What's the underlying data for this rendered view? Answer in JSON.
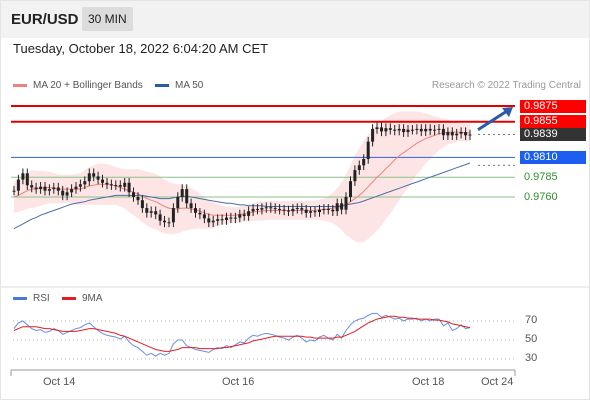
{
  "header": {
    "symbol": "EUR/USD",
    "interval": "30 MIN"
  },
  "datetime": "Tuesday, October 18, 2022 6:04:20 AM CET",
  "legend": {
    "ma20_label": "MA 20 + Bollinger Bands",
    "ma50_label": "MA 50",
    "rsi_label": "RSI",
    "ma9_label": "9MA",
    "copyright": "Research © 2022 Trading Central"
  },
  "colors": {
    "resistance": "#e00000",
    "support": "#3060d0",
    "pivot_green": "#8cc08c",
    "candle": "#222222",
    "bollinger_fill": "#fde0e0",
    "ma20": "#f08080",
    "ma50": "#4a6fa5",
    "rsi": "#6a8ee0",
    "ma9": "#e02020",
    "arrow": "#2a5aa8"
  },
  "chart_data": [
    {
      "type": "candlestick",
      "levels": [
        {
          "value": 0.9875,
          "label": "0.9875",
          "kind": "resistance"
        },
        {
          "value": 0.9855,
          "label": "0.9855",
          "kind": "resistance"
        },
        {
          "value": 0.9839,
          "label": "0.9839",
          "kind": "last"
        },
        {
          "value": 0.981,
          "label": "0.9810",
          "kind": "pivot"
        },
        {
          "value": 0.9785,
          "label": "0.9785",
          "kind": "support"
        },
        {
          "value": 0.976,
          "label": "0.9760",
          "kind": "support"
        }
      ],
      "ylim": [
        0.968,
        0.99
      ],
      "xticks": [
        "Oct 14",
        "Oct 16",
        "Oct 18",
        "Oct 24"
      ],
      "close": [
        0.9768,
        0.9782,
        0.979,
        0.9775,
        0.9772,
        0.977,
        0.9773,
        0.9768,
        0.977,
        0.9772,
        0.9768,
        0.9762,
        0.9766,
        0.977,
        0.9773,
        0.9776,
        0.978,
        0.979,
        0.9786,
        0.9782,
        0.9778,
        0.9776,
        0.9775,
        0.9775,
        0.9773,
        0.9778,
        0.9766,
        0.976,
        0.9756,
        0.9746,
        0.974,
        0.9742,
        0.9738,
        0.973,
        0.9728,
        0.9728,
        0.9746,
        0.976,
        0.977,
        0.9752,
        0.9746,
        0.974,
        0.9738,
        0.9733,
        0.9728,
        0.973,
        0.9732,
        0.9731,
        0.9734,
        0.9733,
        0.9734,
        0.9738,
        0.9736,
        0.9742,
        0.9745,
        0.9744,
        0.9746,
        0.9747,
        0.9746,
        0.9745,
        0.9744,
        0.9743,
        0.9742,
        0.9745,
        0.9746,
        0.9744,
        0.974,
        0.9742,
        0.9741,
        0.9744,
        0.9745,
        0.9744,
        0.9742,
        0.9752,
        0.9744,
        0.976,
        0.978,
        0.9794,
        0.98,
        0.9808,
        0.983,
        0.9846,
        0.9848,
        0.9843,
        0.9847,
        0.9845,
        0.9844,
        0.9846,
        0.9842,
        0.9845,
        0.9845,
        0.9846,
        0.9843,
        0.9846,
        0.9844,
        0.9845,
        0.9846,
        0.9838,
        0.9842,
        0.9838,
        0.984,
        0.9842,
        0.9838,
        0.9839
      ],
      "ma20": [
        0.976,
        0.9762,
        0.9765,
        0.9768,
        0.977,
        0.977,
        0.9771,
        0.9772,
        0.9772,
        0.9771,
        0.977,
        0.977,
        0.977,
        0.977,
        0.977,
        0.977,
        0.9772,
        0.9774,
        0.9775,
        0.9776,
        0.9776,
        0.9776,
        0.9775,
        0.9774,
        0.9772,
        0.977,
        0.9768,
        0.9766,
        0.9764,
        0.9761,
        0.9758,
        0.9756,
        0.9754,
        0.9751,
        0.9748,
        0.9746,
        0.9745,
        0.9745,
        0.9746,
        0.9746,
        0.9745,
        0.9744,
        0.9742,
        0.974,
        0.9738,
        0.9737,
        0.9737,
        0.9737,
        0.9737,
        0.9737,
        0.9737,
        0.9738,
        0.9739,
        0.974,
        0.9741,
        0.9742,
        0.9742,
        0.9743,
        0.9743,
        0.9743,
        0.9743,
        0.9743,
        0.9743,
        0.9743,
        0.9743,
        0.9743,
        0.9743,
        0.9743,
        0.9743,
        0.9744,
        0.9744,
        0.9745,
        0.9746,
        0.9747,
        0.9748,
        0.975,
        0.9754,
        0.9758,
        0.9762,
        0.9767,
        0.9773,
        0.9779,
        0.9785,
        0.979,
        0.9796,
        0.9801,
        0.9807,
        0.9812,
        0.9816,
        0.982,
        0.9824,
        0.9828,
        0.9831,
        0.9834,
        0.9836,
        0.9838,
        0.984,
        0.9841,
        0.9842,
        0.9842,
        0.9842,
        0.9842,
        0.9841,
        0.9841
      ],
      "ma50": [
        0.972,
        0.9723,
        0.9726,
        0.9729,
        0.9732,
        0.9734,
        0.9737,
        0.9739,
        0.9741,
        0.9743,
        0.9745,
        0.9747,
        0.9749,
        0.9751,
        0.9752,
        0.9753,
        0.9754,
        0.9756,
        0.9757,
        0.9758,
        0.9759,
        0.976,
        0.9761,
        0.9762,
        0.9762,
        0.9762,
        0.9762,
        0.9762,
        0.9762,
        0.9762,
        0.9761,
        0.976,
        0.9759,
        0.9758,
        0.9758,
        0.9758,
        0.9759,
        0.976,
        0.9761,
        0.9761,
        0.976,
        0.9759,
        0.9758,
        0.9757,
        0.9756,
        0.9755,
        0.9754,
        0.9753,
        0.9752,
        0.9752,
        0.9751,
        0.975,
        0.975,
        0.9749,
        0.9749,
        0.9749,
        0.9749,
        0.9748,
        0.9748,
        0.9748,
        0.9748,
        0.9748,
        0.9748,
        0.9748,
        0.9748,
        0.9748,
        0.9748,
        0.9748,
        0.9748,
        0.9748,
        0.9748,
        0.9748,
        0.9748,
        0.9748,
        0.9749,
        0.975,
        0.9751,
        0.9752,
        0.9753,
        0.9755,
        0.9757,
        0.9759,
        0.9761,
        0.9763,
        0.9765,
        0.9767,
        0.9769,
        0.9771,
        0.9773,
        0.9775,
        0.9777,
        0.9779,
        0.9781,
        0.9783,
        0.9785,
        0.9787,
        0.9789,
        0.9791,
        0.9793,
        0.9795,
        0.9797,
        0.9799,
        0.9801,
        0.9803
      ],
      "bb_width": [
        0.002,
        0.0021,
        0.0022,
        0.0023,
        0.0024,
        0.0023,
        0.0022,
        0.0021,
        0.002,
        0.0019,
        0.0018,
        0.0018,
        0.0018,
        0.0018,
        0.0019,
        0.002,
        0.0022,
        0.0024,
        0.0025,
        0.0026,
        0.0026,
        0.0026,
        0.0025,
        0.0024,
        0.0024,
        0.0025,
        0.0027,
        0.0029,
        0.0031,
        0.0033,
        0.0034,
        0.0035,
        0.0035,
        0.0035,
        0.0034,
        0.0033,
        0.0032,
        0.0031,
        0.003,
        0.0028,
        0.0026,
        0.0024,
        0.0022,
        0.002,
        0.0018,
        0.0016,
        0.0014,
        0.0012,
        0.0011,
        0.001,
        0.001,
        0.001,
        0.001,
        0.0011,
        0.0011,
        0.0012,
        0.0012,
        0.0012,
        0.0012,
        0.0012,
        0.0012,
        0.0012,
        0.0012,
        0.0012,
        0.0012,
        0.0012,
        0.0012,
        0.0012,
        0.0012,
        0.0013,
        0.0014,
        0.0016,
        0.0019,
        0.0024,
        0.003,
        0.0038,
        0.0046,
        0.0054,
        0.006,
        0.0064,
        0.0066,
        0.0067,
        0.0067,
        0.0066,
        0.0064,
        0.0062,
        0.0059,
        0.0056,
        0.0052,
        0.0048,
        0.0044,
        0.004,
        0.0036,
        0.0032,
        0.0028,
        0.0024,
        0.0021,
        0.0018,
        0.0016,
        0.0014,
        0.0012,
        0.0011,
        0.0011,
        0.0011
      ],
      "forecast_arrow": {
        "from": 0.9845,
        "to": 0.9875
      }
    },
    {
      "type": "line",
      "title": "RSI",
      "ylim": [
        20,
        80
      ],
      "yticks": [
        "70",
        "50",
        "30"
      ],
      "rsi": [
        62,
        68,
        70,
        66,
        62,
        60,
        61,
        58,
        59,
        62,
        60,
        56,
        58,
        60,
        62,
        63,
        66,
        68,
        64,
        60,
        57,
        55,
        54,
        53,
        51,
        54,
        48,
        44,
        42,
        38,
        34,
        36,
        33,
        36,
        34,
        36,
        46,
        50,
        50,
        44,
        42,
        40,
        39,
        38,
        37,
        40,
        42,
        41,
        44,
        42,
        45,
        48,
        47,
        52,
        55,
        54,
        56,
        57,
        56,
        55,
        53,
        52,
        50,
        53,
        55,
        52,
        48,
        50,
        49,
        53,
        55,
        52,
        50,
        56,
        52,
        60,
        66,
        70,
        72,
        73,
        76,
        78,
        78,
        74,
        76,
        74,
        72,
        73,
        70,
        72,
        72,
        73,
        70,
        72,
        70,
        72,
        72,
        65,
        68,
        60,
        62,
        66,
        62,
        63
      ],
      "ma9": [
        60,
        62,
        64,
        64,
        64,
        64,
        63,
        62,
        62,
        61,
        60,
        59,
        59,
        59,
        59,
        60,
        61,
        62,
        62,
        61,
        60,
        59,
        58,
        57,
        55,
        54,
        52,
        50,
        48,
        46,
        44,
        42,
        40,
        39,
        38,
        38,
        39,
        40,
        42,
        42,
        42,
        42,
        41,
        41,
        41,
        41,
        41,
        42,
        42,
        43,
        44,
        45,
        46,
        47,
        49,
        50,
        51,
        52,
        53,
        54,
        54,
        54,
        54,
        54,
        54,
        54,
        53,
        53,
        52,
        52,
        52,
        52,
        52,
        53,
        53,
        55,
        57,
        59,
        62,
        65,
        68,
        70,
        72,
        73,
        74,
        75,
        75,
        74,
        74,
        73,
        73,
        72,
        72,
        72,
        72,
        71,
        71,
        70,
        69,
        67,
        66,
        65,
        64,
        63
      ]
    }
  ]
}
